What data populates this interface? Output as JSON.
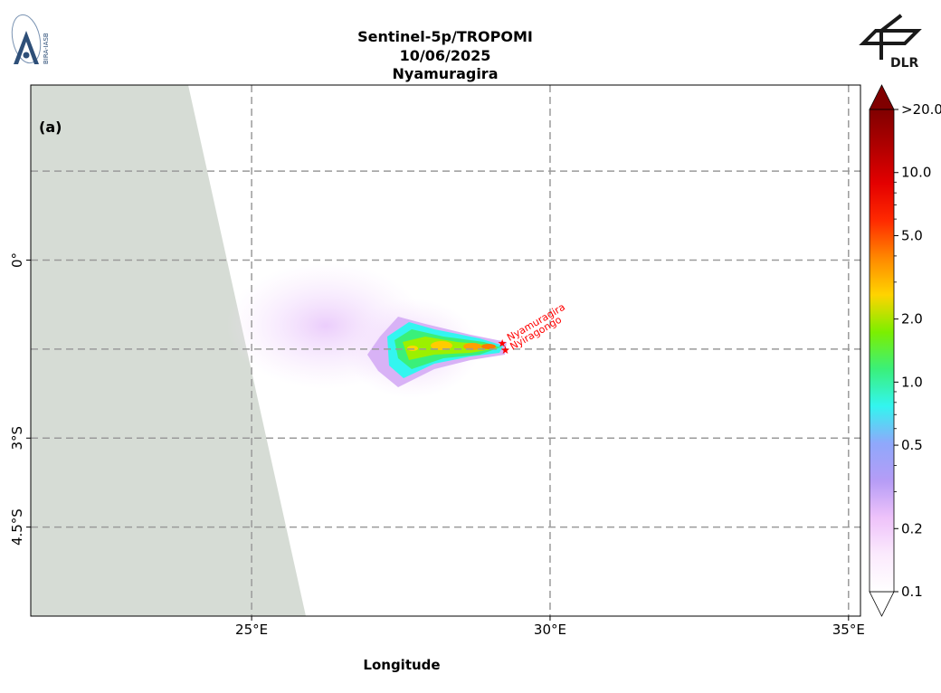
{
  "header": {
    "title_line1": "Sentinel-5p/TROPOMI",
    "title_line2": "10/06/2025",
    "title_line3": "Nyamuragira"
  },
  "logos": {
    "left_text": "BIRA-IASB",
    "right_text": "DLR"
  },
  "map": {
    "panel_label": "(a)",
    "x_axis_label": "Longitude",
    "lon_range": [
      21.3,
      35.2
    ],
    "lat_range": [
      -6.0,
      2.95
    ],
    "x_ticks": [
      {
        "value": 25,
        "label": "25°E"
      },
      {
        "value": 30,
        "label": "30°E"
      },
      {
        "value": 35,
        "label": "35°E"
      }
    ],
    "y_ticks": [
      {
        "value": 0,
        "label": "0°"
      },
      {
        "value": -3,
        "label": "3°S"
      },
      {
        "value": -4.5,
        "label": "4.5°S"
      }
    ],
    "gridlines_lon": [
      25,
      30,
      35
    ],
    "gridlines_lat": [
      1.5,
      0,
      -1.5,
      -3,
      -4.5
    ],
    "volcanoes": [
      {
        "name": "Nyamuragira",
        "lon": 29.2,
        "lat": -1.4
      },
      {
        "name": "Nyiragongo",
        "lon": 29.25,
        "lat": -1.52
      }
    ],
    "colors": {
      "no_data": "#d6dcd5",
      "gridline": "#9a9a9a",
      "volcano_marker": "#ff0000"
    }
  },
  "colorbar": {
    "tick_labels": [
      ">20.0",
      "10.0",
      "5.0",
      "2.0",
      "1.0",
      "0.5",
      "0.2",
      "0.1"
    ],
    "tick_values": [
      20,
      10,
      5,
      2,
      1,
      0.5,
      0.2,
      0.1
    ],
    "scale": "log",
    "extend": "both",
    "gradient_colors": [
      "#ffffff",
      "#fbeafd",
      "#eec2fa",
      "#b59cf6",
      "#8fa8fb",
      "#33f5f0",
      "#3af07a",
      "#7cef00",
      "#ffd400",
      "#ff8800",
      "#ff2a00",
      "#e40000",
      "#b00000",
      "#800000"
    ]
  }
}
